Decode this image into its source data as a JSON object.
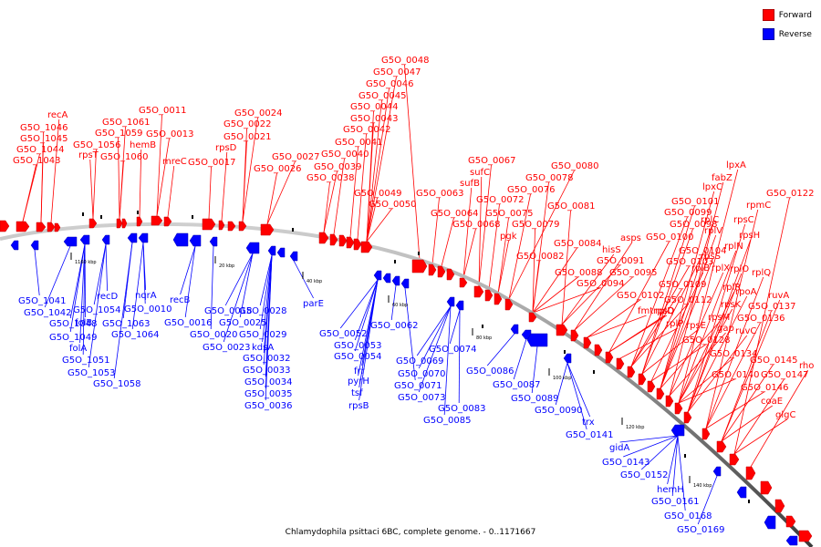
{
  "legend": {
    "forward_label": "Forward",
    "reverse_label": "Reverse",
    "forward_color": "#ff0000",
    "reverse_color": "#0000ff"
  },
  "caption": "Chlamydophila psittaci 6BC, complete genome. - 0..1171667",
  "ticks": [
    "1160 kbp",
    "20 kbp",
    "40 kbp",
    "60 kbp",
    "80 kbp",
    "100 kbp",
    "120 kbp",
    "140 kbp"
  ],
  "forward_labels": [
    "recA",
    "G5O_1046",
    "G5O_1045",
    "G5O_1044",
    "G5O_1043",
    "rpsT",
    "G5O_1061",
    "G5O_1059",
    "G5O_1056",
    "G5O_1060",
    "hemB",
    "G5O_0011",
    "G5O_0013",
    "mreC",
    "G5O_0017",
    "rpsD",
    "G5O_0021",
    "G5O_0022",
    "G5O_0024",
    "G5O_0026",
    "G5O_0027",
    "G5O_0038",
    "G5O_0039",
    "G5O_0040",
    "G5O_0041",
    "G5O_0042",
    "G5O_0043",
    "G5O_0044",
    "G5O_0045",
    "G5O_0046",
    "G5O_0047",
    "G5O_0048",
    "G5O_0049",
    "G5O_0050",
    "G5O_0063",
    "G5O_0064",
    "G5O_0068",
    "sufB",
    "sufC",
    "G5O_0067",
    "G5O_0072",
    "G5O_0075",
    "G5O_0076",
    "G5O_0078",
    "G5O_0079",
    "G5O_0080",
    "G5O_0081",
    "pgk",
    "G5O_0082",
    "G5O_0084",
    "G5O_0088",
    "hisS",
    "G5O_0091",
    "G5O_0094",
    "G5O_0095",
    "G5O_0102",
    "fmt",
    "rplD",
    "rplP",
    "rpsE",
    "G5O_0112",
    "G5O_0128",
    "rpsQ",
    "G5O_0109",
    "rpsM",
    "gap",
    "rpsK",
    "rplR",
    "rplX",
    "rplB",
    "rpsS",
    "G5O_0103",
    "G5O_0104",
    "rplV",
    "rpsH",
    "rplC",
    "G5O_0100",
    "asps",
    "G5O_0099",
    "G5O_0098",
    "G5O_0101",
    "lpxC",
    "fabZ",
    "lpxA",
    "rpmC",
    "G5O_0122",
    "rpsC",
    "rplN",
    "rplO",
    "rplQ",
    "rpoA",
    "ruvA",
    "G5O_0137",
    "G5O_0136",
    "ruvC",
    "G5O_0134",
    "G5O_0145",
    "G5O_0140",
    "G5O_0147",
    "G5O_0146",
    "rho",
    "coaE",
    "glgC"
  ],
  "reverse_labels": [
    "G5O_1041",
    "G5O_1042",
    "G5O_1048",
    "G5O_1049",
    "folA",
    "G5O_1051",
    "G5O_1053",
    "G5O_1058",
    "folB",
    "G5O_1054",
    "recD",
    "G5O_1063",
    "G5O_1064",
    "nqrA",
    "G5O_0010",
    "recB",
    "G5O_0016",
    "G5O_0018",
    "G5O_0020",
    "G5O_0023",
    "G5O_0025",
    "G5O_0028",
    "G5O_0029",
    "kdsA",
    "G5O_0032",
    "G5O_0033",
    "G5O_0034",
    "G5O_0035",
    "G5O_0036",
    "parE",
    "G5O_0052",
    "G5O_0053",
    "G5O_0054",
    "frr",
    "pyrH",
    "tsf",
    "rpsB",
    "G5O_0062",
    "G5O_0069",
    "G5O_0070",
    "G5O_0071",
    "G5O_0073",
    "G5O_0074",
    "G5O_0086",
    "G5O_0087",
    "G5O_0083",
    "G5O_0085",
    "G5O_0089",
    "G5O_0090",
    "trx",
    "G5O_0141",
    "gidA",
    "G5O_0143",
    "G5O_0152",
    "hemH",
    "G5O_0161",
    "G5O_0168",
    "G5O_0169"
  ]
}
